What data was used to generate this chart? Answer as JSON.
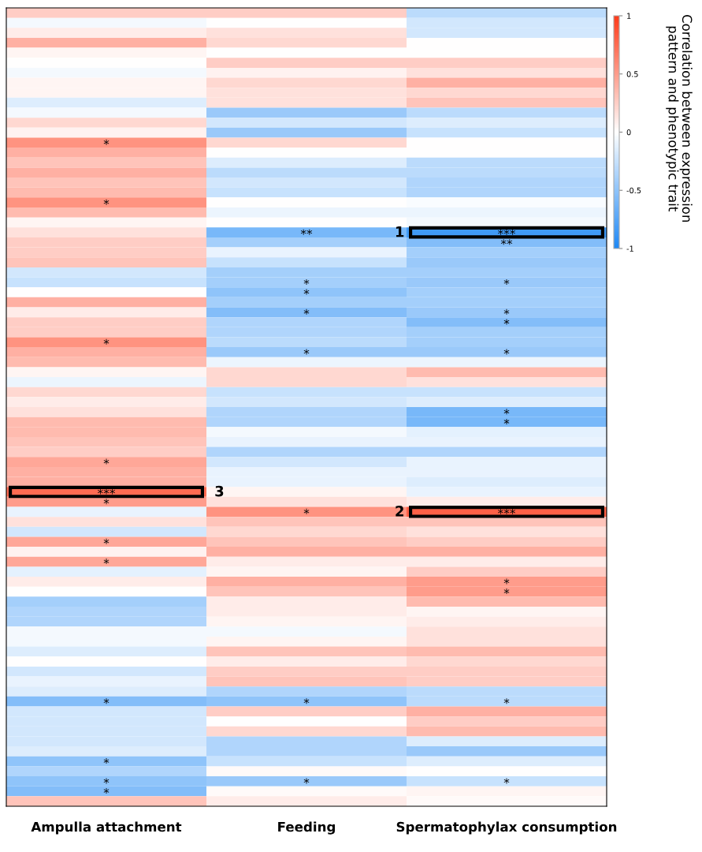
{
  "chart_data": {
    "type": "heatmap",
    "categories": [
      "Ampulla attachment",
      "Feeding",
      "Spermatophylax consumption"
    ],
    "y_categories": [
      null,
      null,
      null,
      null,
      null,
      null,
      null,
      null,
      null,
      null,
      null,
      null,
      null,
      null,
      null,
      null,
      null,
      null,
      null,
      null,
      null,
      null,
      null,
      null,
      null,
      null,
      null,
      null,
      null,
      null,
      null,
      null,
      null,
      null,
      null,
      null,
      null,
      null,
      null,
      null,
      null,
      null,
      null,
      null,
      null,
      null,
      null,
      null,
      null,
      null,
      null,
      null,
      null,
      null,
      null,
      null,
      null,
      null,
      null,
      null,
      null,
      null,
      null,
      null,
      null,
      null,
      null,
      null,
      null,
      null,
      null,
      null,
      null,
      null,
      null,
      null,
      null,
      null,
      null,
      null
    ],
    "cells": [
      [
        0.25,
        0.25,
        -0.3
      ],
      [
        -0.05,
        0,
        -0.2
      ],
      [
        0.1,
        0.15,
        -0.2
      ],
      [
        0.4,
        0.2,
        0
      ],
      [
        0.05,
        0,
        0
      ],
      [
        0,
        0.25,
        0.25
      ],
      [
        -0.05,
        0.07,
        0.15
      ],
      [
        0.05,
        0.2,
        0.4
      ],
      [
        0.05,
        0.15,
        0.2
      ],
      [
        -0.15,
        0.15,
        0.3
      ],
      [
        -0.05,
        -0.45,
        -0.3
      ],
      [
        0.2,
        -0.2,
        -0.15
      ],
      [
        0.07,
        -0.45,
        -0.25
      ],
      [
        0.55,
        0.2,
        0
      ],
      [
        0.4,
        0,
        0
      ],
      [
        0.3,
        -0.15,
        -0.3
      ],
      [
        0.4,
        -0.3,
        -0.3
      ],
      [
        0.3,
        -0.2,
        -0.35
      ],
      [
        0.35,
        -0.25,
        -0.35
      ],
      [
        0.55,
        0,
        -0.03
      ],
      [
        0.35,
        -0.08,
        -0.08
      ],
      [
        0.05,
        0,
        -0.05
      ],
      [
        0.15,
        -0.6,
        -0.85
      ],
      [
        0.25,
        -0.4,
        -0.55
      ],
      [
        0.25,
        -0.1,
        -0.4
      ],
      [
        0.3,
        -0.25,
        -0.45
      ],
      [
        -0.2,
        -0.4,
        -0.4
      ],
      [
        -0.25,
        -0.4,
        -0.45
      ],
      [
        0,
        -0.5,
        -0.4
      ],
      [
        0.4,
        -0.4,
        -0.4
      ],
      [
        0.1,
        -0.55,
        -0.45
      ],
      [
        0.25,
        -0.35,
        -0.55
      ],
      [
        0.25,
        -0.35,
        -0.4
      ],
      [
        0.55,
        -0.3,
        -0.4
      ],
      [
        0.4,
        -0.45,
        -0.45
      ],
      [
        0.35,
        -0.08,
        -0.08
      ],
      [
        0.05,
        0.2,
        0.35
      ],
      [
        -0.08,
        0.2,
        0.15
      ],
      [
        0.2,
        -0.25,
        -0.25
      ],
      [
        0.1,
        -0.2,
        -0.15
      ],
      [
        0.15,
        -0.35,
        -0.6
      ],
      [
        0.35,
        -0.35,
        -0.6
      ],
      [
        0.35,
        -0.05,
        -0.12
      ],
      [
        0.3,
        -0.1,
        -0.1
      ],
      [
        0.25,
        -0.35,
        -0.35
      ],
      [
        0.45,
        -0.2,
        -0.1
      ],
      [
        0.4,
        -0.1,
        -0.1
      ],
      [
        0.4,
        -0.1,
        -0.15
      ],
      [
        0.75,
        0.05,
        -0.1
      ],
      [
        0.5,
        0.15,
        0.1
      ],
      [
        -0.1,
        0.55,
        0.8
      ],
      [
        0.15,
        0.3,
        0.3
      ],
      [
        -0.2,
        0.2,
        0.15
      ],
      [
        0.45,
        0.3,
        0.25
      ],
      [
        0.07,
        0.4,
        0.4
      ],
      [
        0.45,
        0.1,
        0.1
      ],
      [
        -0.12,
        0.05,
        0.25
      ],
      [
        0.1,
        0.4,
        0.5
      ],
      [
        0,
        0.3,
        0.5
      ],
      [
        -0.4,
        0.1,
        0.35
      ],
      [
        -0.35,
        0.1,
        0.05
      ],
      [
        -0.35,
        0.05,
        0.1
      ],
      [
        -0.05,
        -0.05,
        0.15
      ],
      [
        -0.05,
        0.05,
        0.15
      ],
      [
        -0.15,
        0.3,
        0.35
      ],
      [
        0,
        0.1,
        0.2
      ],
      [
        -0.2,
        0.25,
        0.25
      ],
      [
        -0.1,
        0.3,
        0.25
      ],
      [
        -0.15,
        -0.35,
        -0.3
      ],
      [
        -0.55,
        -0.5,
        -0.3
      ],
      [
        -0.2,
        0.25,
        0.4
      ],
      [
        -0.2,
        0,
        0.25
      ],
      [
        -0.2,
        0.2,
        0.35
      ],
      [
        -0.2,
        -0.35,
        -0.15
      ],
      [
        -0.15,
        -0.35,
        -0.45
      ],
      [
        -0.5,
        -0.25,
        -0.15
      ],
      [
        -0.35,
        0.03,
        0
      ],
      [
        -0.5,
        -0.45,
        -0.25
      ],
      [
        -0.55,
        0.03,
        0.05
      ],
      [
        0.3,
        0.1,
        0.03
      ]
    ],
    "cell_labels": [
      [
        null,
        null,
        null
      ],
      [
        null,
        null,
        null
      ],
      [
        null,
        null,
        null
      ],
      [
        null,
        null,
        null
      ],
      [
        null,
        null,
        null
      ],
      [
        null,
        null,
        null
      ],
      [
        null,
        null,
        null
      ],
      [
        null,
        null,
        null
      ],
      [
        null,
        null,
        null
      ],
      [
        null,
        null,
        null
      ],
      [
        null,
        null,
        null
      ],
      [
        null,
        null,
        null
      ],
      [
        null,
        null,
        null
      ],
      [
        "*",
        null,
        null
      ],
      [
        null,
        null,
        null
      ],
      [
        null,
        null,
        null
      ],
      [
        null,
        null,
        null
      ],
      [
        null,
        null,
        null
      ],
      [
        null,
        null,
        null
      ],
      [
        "*",
        null,
        null
      ],
      [
        null,
        null,
        null
      ],
      [
        null,
        null,
        null
      ],
      [
        null,
        "**",
        "***"
      ],
      [
        null,
        null,
        "**"
      ],
      [
        null,
        null,
        null
      ],
      [
        null,
        null,
        null
      ],
      [
        null,
        null,
        null
      ],
      [
        null,
        "*",
        "*"
      ],
      [
        null,
        "*",
        null
      ],
      [
        null,
        null,
        null
      ],
      [
        null,
        "*",
        "*"
      ],
      [
        null,
        null,
        "*"
      ],
      [
        null,
        null,
        null
      ],
      [
        "*",
        null,
        null
      ],
      [
        null,
        "*",
        "*"
      ],
      [
        null,
        null,
        null
      ],
      [
        null,
        null,
        null
      ],
      [
        null,
        null,
        null
      ],
      [
        null,
        null,
        null
      ],
      [
        null,
        null,
        null
      ],
      [
        null,
        null,
        "*"
      ],
      [
        null,
        null,
        "*"
      ],
      [
        null,
        null,
        null
      ],
      [
        null,
        null,
        null
      ],
      [
        null,
        null,
        null
      ],
      [
        "*",
        null,
        null
      ],
      [
        null,
        null,
        null
      ],
      [
        null,
        null,
        null
      ],
      [
        "***",
        null,
        null
      ],
      [
        "*",
        null,
        null
      ],
      [
        null,
        "*",
        "***"
      ],
      [
        null,
        null,
        null
      ],
      [
        null,
        null,
        null
      ],
      [
        "*",
        null,
        null
      ],
      [
        null,
        null,
        null
      ],
      [
        "*",
        null,
        null
      ],
      [
        null,
        null,
        null
      ],
      [
        null,
        null,
        "*"
      ],
      [
        null,
        null,
        "*"
      ],
      [
        null,
        null,
        null
      ],
      [
        null,
        null,
        null
      ],
      [
        null,
        null,
        null
      ],
      [
        null,
        null,
        null
      ],
      [
        null,
        null,
        null
      ],
      [
        null,
        null,
        null
      ],
      [
        null,
        null,
        null
      ],
      [
        null,
        null,
        null
      ],
      [
        null,
        null,
        null
      ],
      [
        null,
        null,
        null
      ],
      [
        "*",
        "*",
        "*"
      ],
      [
        null,
        null,
        null
      ],
      [
        null,
        null,
        null
      ],
      [
        null,
        null,
        null
      ],
      [
        null,
        null,
        null
      ],
      [
        null,
        null,
        null
      ],
      [
        "*",
        null,
        null
      ],
      [
        null,
        null,
        null
      ],
      [
        "*",
        "*",
        "*"
      ],
      [
        "*",
        null,
        null
      ],
      [
        null,
        null,
        null
      ]
    ],
    "clim": [
      -1,
      1
    ],
    "cticks": [
      {
        "value": -1,
        "label": "-1"
      },
      {
        "value": -0.5,
        "label": "-0.5"
      },
      0,
      0.5,
      1
    ],
    "clabel": "Correlation between expression pattern and phenotypic trait",
    "colors": [
      "#1e88f5",
      "#ffffff",
      "#ff3b1a"
    ],
    "annotations": [
      "1",
      "2",
      "3"
    ]
  }
}
